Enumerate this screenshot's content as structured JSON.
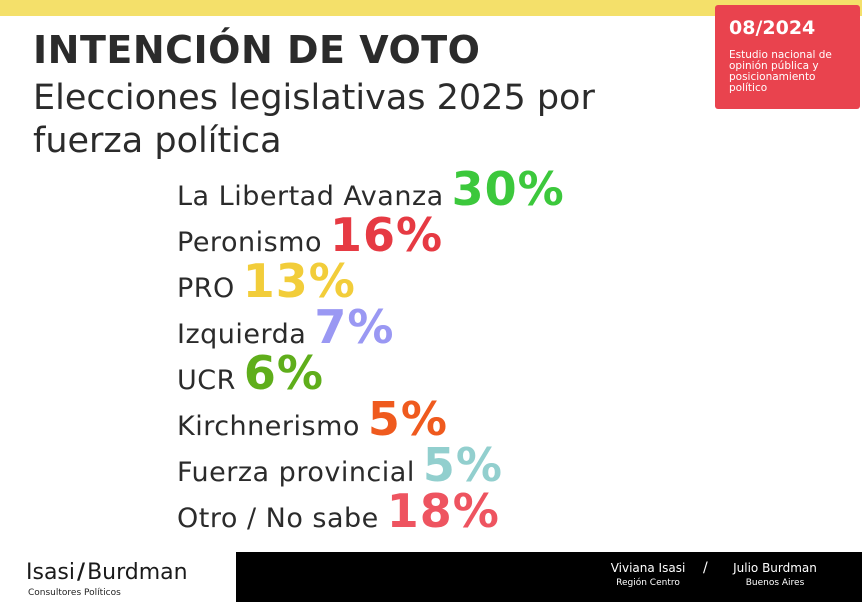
{
  "header": {
    "title": "INTENCIÓN DE VOTO",
    "subtitle": "Elecciones legislativas 2025 por fuerza política"
  },
  "badge": {
    "date": "08/2024",
    "description": "Estudio nacional de opinión pública y posicionamiento político"
  },
  "chart_data": {
    "type": "table",
    "title": "INTENCIÓN DE VOTO",
    "subtitle": "Elecciones legislativas 2025 por fuerza política",
    "unit": "%",
    "categories": [
      "La Libertad Avanza",
      "Peronismo",
      "PRO",
      "Izquierda",
      "UCR",
      "Kirchnerismo",
      "Fuerza provincial",
      "Otro / No sabe"
    ],
    "values": [
      30,
      16,
      13,
      7,
      6,
      5,
      5,
      18
    ],
    "labels": [
      "30%",
      "16%",
      "13%",
      "7%",
      "6%",
      "5%",
      "5%",
      "18%"
    ],
    "colors": [
      "#3cc83c",
      "#e63a43",
      "#f2cd3a",
      "#9a98f3",
      "#5fae1b",
      "#ef5a1e",
      "#92cfce",
      "#ee5460"
    ]
  },
  "footer": {
    "logo_left": "Isasi",
    "logo_slash": "/",
    "logo_right": "Burdman",
    "logo_sub": "Consultores Políticos",
    "separator": "/",
    "people": [
      {
        "name": "Viviana Isasi",
        "region": "Región Centro"
      },
      {
        "name": "Julio Burdman",
        "region": "Buenos Aires"
      }
    ]
  }
}
